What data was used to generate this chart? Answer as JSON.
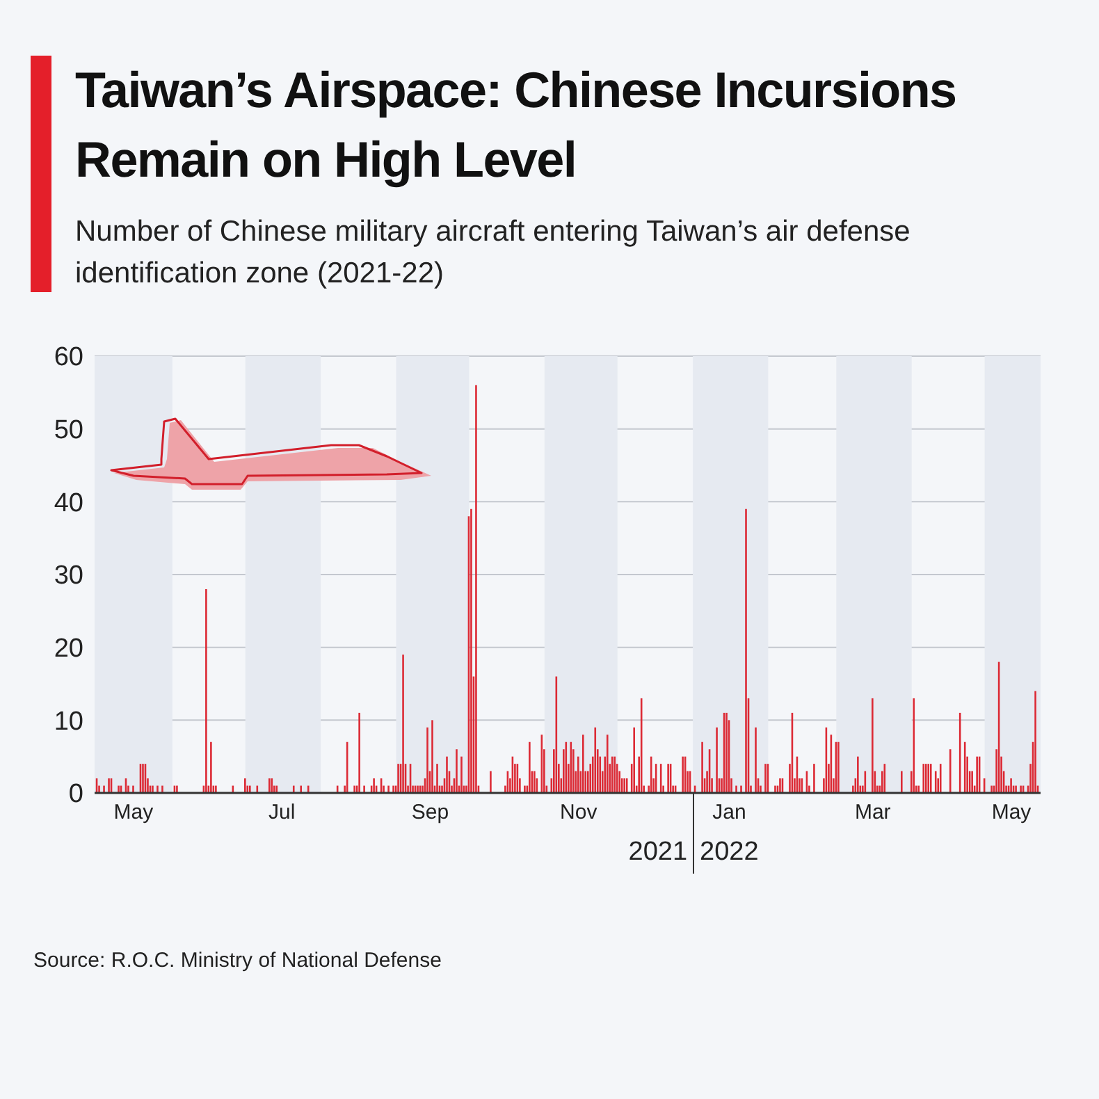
{
  "chart_data": {
    "type": "bar",
    "title": "Taiwan’s Airspace: Chinese Incursions Remain on High Level",
    "subtitle": "Number of Chinese military aircraft entering Taiwan’s air defense identification zone (2021-22)",
    "color": "#dc2a35",
    "grid": "y",
    "x": [
      "2021-05-01",
      "2021-05-02",
      "2021-05-04",
      "2021-05-06",
      "2021-05-07",
      "2021-05-10",
      "2021-05-11",
      "2021-05-13",
      "2021-05-14",
      "2021-05-16",
      "2021-05-19",
      "2021-05-20",
      "2021-05-21",
      "2021-05-22",
      "2021-05-23",
      "2021-05-24",
      "2021-05-26",
      "2021-05-28",
      "2021-06-02",
      "2021-06-03",
      "2021-06-14",
      "2021-06-15",
      "2021-06-16",
      "2021-06-17",
      "2021-06-18",
      "2021-06-19",
      "2021-06-26",
      "2021-07-01",
      "2021-07-02",
      "2021-07-03",
      "2021-07-06",
      "2021-07-11",
      "2021-07-12",
      "2021-07-13",
      "2021-07-14",
      "2021-07-21",
      "2021-07-24",
      "2021-07-27",
      "2021-08-08",
      "2021-08-11",
      "2021-08-12",
      "2021-08-15",
      "2021-08-16",
      "2021-08-17",
      "2021-08-19",
      "2021-08-22",
      "2021-08-23",
      "2021-08-24",
      "2021-08-26",
      "2021-08-27",
      "2021-08-29",
      "2021-08-31",
      "2021-09-01",
      "2021-09-02",
      "2021-09-03",
      "2021-09-04",
      "2021-09-05",
      "2021-09-06",
      "2021-09-07",
      "2021-09-08",
      "2021-09-09",
      "2021-09-10",
      "2021-09-11",
      "2021-09-12",
      "2021-09-13",
      "2021-09-14",
      "2021-09-15",
      "2021-09-16",
      "2021-09-17",
      "2021-09-18",
      "2021-09-19",
      "2021-09-20",
      "2021-09-21",
      "2021-09-22",
      "2021-09-23",
      "2021-09-24",
      "2021-09-25",
      "2021-09-26",
      "2021-09-27",
      "2021-09-28",
      "2021-09-29",
      "2021-09-30",
      "2021-10-01",
      "2021-10-02",
      "2021-10-03",
      "2021-10-04",
      "2021-10-05",
      "2021-10-10",
      "2021-10-16",
      "2021-10-17",
      "2021-10-18",
      "2021-10-19",
      "2021-10-20",
      "2021-10-21",
      "2021-10-22",
      "2021-10-24",
      "2021-10-25",
      "2021-10-26",
      "2021-10-27",
      "2021-10-28",
      "2021-10-29",
      "2021-10-31",
      "2021-11-01",
      "2021-11-02",
      "2021-11-04",
      "2021-11-05",
      "2021-11-06",
      "2021-11-07",
      "2021-11-08",
      "2021-11-09",
      "2021-11-10",
      "2021-11-11",
      "2021-11-12",
      "2021-11-13",
      "2021-11-14",
      "2021-11-15",
      "2021-11-16",
      "2021-11-17",
      "2021-11-18",
      "2021-11-19",
      "2021-11-20",
      "2021-11-21",
      "2021-11-22",
      "2021-11-23",
      "2021-11-24",
      "2021-11-25",
      "2021-11-26",
      "2021-11-27",
      "2021-11-28",
      "2021-11-29",
      "2021-11-30",
      "2021-12-01",
      "2021-12-02",
      "2021-12-03",
      "2021-12-04",
      "2021-12-05",
      "2021-12-07",
      "2021-12-08",
      "2021-12-09",
      "2021-12-10",
      "2021-12-11",
      "2021-12-12",
      "2021-12-14",
      "2021-12-15",
      "2021-12-16",
      "2021-12-17",
      "2021-12-19",
      "2021-12-20",
      "2021-12-22",
      "2021-12-23",
      "2021-12-24",
      "2021-12-25",
      "2021-12-28",
      "2021-12-29",
      "2021-12-30",
      "2021-12-31",
      "2022-01-02",
      "2022-01-05",
      "2022-01-06",
      "2022-01-07",
      "2022-01-08",
      "2022-01-09",
      "2022-01-11",
      "2022-01-12",
      "2022-01-13",
      "2022-01-14",
      "2022-01-15",
      "2022-01-16",
      "2022-01-17",
      "2022-01-19",
      "2022-01-21",
      "2022-01-23",
      "2022-01-24",
      "2022-01-25",
      "2022-01-27",
      "2022-01-28",
      "2022-01-29",
      "2022-01-31",
      "2022-02-01",
      "2022-02-04",
      "2022-02-05",
      "2022-02-06",
      "2022-02-07",
      "2022-02-10",
      "2022-02-11",
      "2022-02-12",
      "2022-02-13",
      "2022-02-14",
      "2022-02-15",
      "2022-02-17",
      "2022-02-18",
      "2022-02-20",
      "2022-02-24",
      "2022-02-25",
      "2022-02-26",
      "2022-02-27",
      "2022-02-28",
      "2022-03-01",
      "2022-03-02",
      "2022-03-08",
      "2022-03-09",
      "2022-03-10",
      "2022-03-11",
      "2022-03-12",
      "2022-03-13",
      "2022-03-16",
      "2022-03-17",
      "2022-03-18",
      "2022-03-19",
      "2022-03-20",
      "2022-03-21",
      "2022-03-28",
      "2022-04-01",
      "2022-04-02",
      "2022-04-03",
      "2022-04-04",
      "2022-04-06",
      "2022-04-07",
      "2022-04-08",
      "2022-04-09",
      "2022-04-11",
      "2022-04-12",
      "2022-04-13",
      "2022-04-17",
      "2022-04-21",
      "2022-04-23",
      "2022-04-24",
      "2022-04-25",
      "2022-04-26",
      "2022-04-27",
      "2022-04-28",
      "2022-04-29",
      "2022-05-01",
      "2022-05-04",
      "2022-05-05",
      "2022-05-06",
      "2022-05-07",
      "2022-05-08",
      "2022-05-09",
      "2022-05-10",
      "2022-05-11",
      "2022-05-12",
      "2022-05-13",
      "2022-05-14",
      "2022-05-16",
      "2022-05-17",
      "2022-05-19",
      "2022-05-20",
      "2022-05-21",
      "2022-05-22",
      "2022-05-23"
    ],
    "values": [
      2,
      1,
      1,
      2,
      2,
      1,
      1,
      2,
      1,
      1,
      4,
      4,
      4,
      2,
      1,
      1,
      1,
      1,
      1,
      1,
      1,
      28,
      1,
      7,
      1,
      1,
      1,
      2,
      1,
      1,
      1,
      2,
      2,
      1,
      1,
      1,
      1,
      1,
      1,
      1,
      7,
      1,
      1,
      11,
      1,
      1,
      2,
      1,
      2,
      1,
      1,
      1,
      1,
      4,
      4,
      19,
      4,
      1,
      4,
      1,
      1,
      1,
      1,
      1,
      2,
      9,
      3,
      10,
      1,
      4,
      1,
      1,
      2,
      5,
      3,
      1,
      2,
      6,
      1,
      5,
      1,
      1,
      38,
      39,
      16,
      56,
      1,
      3,
      1,
      3,
      2,
      5,
      4,
      4,
      2,
      1,
      1,
      7,
      3,
      3,
      2,
      8,
      6,
      1,
      2,
      6,
      16,
      4,
      2,
      6,
      7,
      4,
      7,
      6,
      3,
      5,
      3,
      8,
      3,
      3,
      4,
      5,
      9,
      6,
      5,
      3,
      5,
      8,
      4,
      5,
      5,
      4,
      3,
      2,
      2,
      2,
      4,
      9,
      1,
      5,
      13,
      1,
      1,
      5,
      2,
      4,
      4,
      1,
      4,
      4,
      1,
      1,
      5,
      5,
      3,
      3,
      1,
      7,
      2,
      3,
      6,
      2,
      9,
      2,
      2,
      11,
      11,
      10,
      2,
      1,
      1,
      39,
      13,
      1,
      9,
      2,
      1,
      4,
      4,
      1,
      1,
      2,
      2,
      4,
      11,
      2,
      5,
      2,
      2,
      3,
      1,
      4,
      2,
      9,
      4,
      8,
      2,
      7,
      7,
      1,
      2,
      5,
      1,
      1,
      3,
      13,
      3,
      1,
      1,
      3,
      4,
      3,
      3,
      13,
      1,
      1,
      4,
      4,
      4,
      4,
      3,
      2,
      4,
      6,
      11,
      7,
      5,
      3,
      3,
      1,
      5,
      5,
      2,
      1,
      1,
      6,
      18,
      5,
      3,
      1,
      1,
      2,
      1,
      1,
      1,
      1,
      1,
      4,
      7,
      14,
      1
    ],
    "xlim": [
      "2021-04-30",
      "2022-05-24"
    ],
    "xticks": [
      {
        "value": "2021-05-16",
        "label": "May"
      },
      {
        "value": "2021-07-16",
        "label": "Jul"
      },
      {
        "value": "2021-09-15",
        "label": "Sep"
      },
      {
        "value": "2021-11-15",
        "label": "Nov"
      },
      {
        "value": "2022-01-16",
        "label": "Jan"
      },
      {
        "value": "2022-03-16",
        "label": "Mar"
      },
      {
        "value": "2022-05-12",
        "label": "May"
      }
    ],
    "ylim": [
      0,
      60
    ],
    "yticks": [
      0,
      10,
      20,
      30,
      40,
      50,
      60
    ],
    "bands": [
      {
        "axis": "x",
        "from": "2021-04-30",
        "to": "2021-06-01",
        "color": "#e6eaf1"
      },
      {
        "axis": "x",
        "from": "2021-07-01",
        "to": "2021-08-01",
        "color": "#e6eaf1"
      },
      {
        "axis": "x",
        "from": "2021-09-01",
        "to": "2021-10-01",
        "color": "#e6eaf1"
      },
      {
        "axis": "x",
        "from": "2021-11-01",
        "to": "2021-12-01",
        "color": "#e6eaf1"
      },
      {
        "axis": "x",
        "from": "2022-01-01",
        "to": "2022-02-01",
        "color": "#e6eaf1"
      },
      {
        "axis": "x",
        "from": "2022-03-01",
        "to": "2022-04-01",
        "color": "#e6eaf1"
      },
      {
        "axis": "x",
        "from": "2022-05-01",
        "to": "2022-05-24",
        "color": "#e6eaf1"
      }
    ],
    "annotations": [
      "2021",
      "2022",
      "Source: R.O.C. Ministry of National Defense"
    ]
  }
}
